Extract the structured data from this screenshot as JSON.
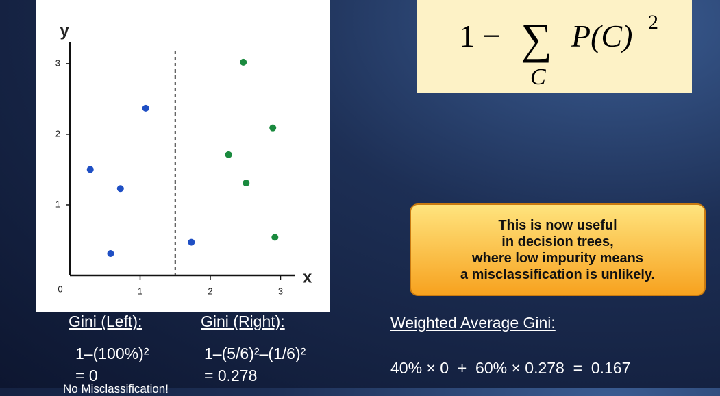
{
  "chart_data": {
    "type": "scatter",
    "x_label": "x",
    "y_label": "y",
    "series": [
      {
        "color": "#1f4fc4",
        "x": [
          0.29,
          0.58,
          0.72,
          1.08,
          1.73
        ],
        "values": [
          1.5,
          0.31,
          1.23,
          2.37,
          0.47
        ]
      },
      {
        "color": "#1a8a3e",
        "x": [
          2.47,
          2.26,
          2.51,
          2.89,
          2.92
        ],
        "values": [
          3.02,
          1.71,
          1.31,
          2.09,
          0.54
        ]
      }
    ],
    "split_x": 1.5,
    "origin_label": 0,
    "xlim": [
      0,
      3.2
    ],
    "ylim": [
      0,
      3.3
    ],
    "xticks": [
      1,
      2,
      3
    ],
    "yticks": [
      1,
      2,
      3
    ]
  },
  "formula": {
    "lead": "1 −",
    "sum": "∑",
    "index": "C",
    "term": "P(C)",
    "power": "2"
  },
  "callout": {
    "lines": [
      "This is now useful",
      "in decision trees,",
      "where low impurity means",
      "a misclassification is unlikely."
    ]
  },
  "left": {
    "heading": "Gini (Left):",
    "calc": "1–(100%)²",
    "result": "= 0",
    "note": "No Misclassification!"
  },
  "right": {
    "heading": "Gini (Right):",
    "calc": "1–(5/6)²–(1/6)²",
    "result": "= 0.278"
  },
  "weighted": {
    "heading": "Weighted Average Gini:",
    "calc": "40% × 0  +  60% × 0.278  =  0.167"
  }
}
